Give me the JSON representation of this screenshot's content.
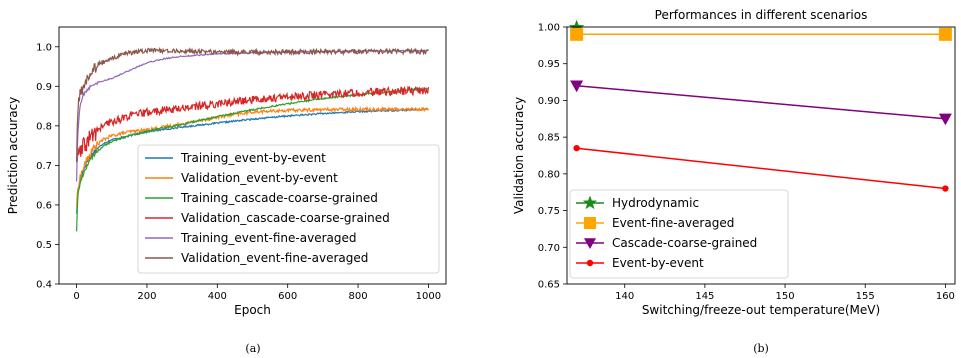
{
  "chart_data": [
    {
      "type": "line",
      "title": "",
      "xlabel": "Epoch",
      "ylabel": "Prediction accuracy",
      "xlim": [
        -50,
        1050
      ],
      "ylim": [
        0.4,
        1.05
      ],
      "xticks": [
        "0",
        "200",
        "400",
        "600",
        "800",
        "1000"
      ],
      "yticks": [
        "0.4",
        "0.5",
        "0.6",
        "0.7",
        "0.8",
        "0.9",
        "1.0"
      ],
      "grid": false,
      "legend_position": "lower-right",
      "caption": "(a)",
      "series": [
        {
          "name": "Training_event-by-event",
          "color": "#1f77b4",
          "noise": 0.002,
          "x": [
            0,
            5,
            10,
            20,
            30,
            50,
            75,
            100,
            150,
            200,
            300,
            400,
            500,
            600,
            700,
            800,
            900,
            1000
          ],
          "y": [
            0.58,
            0.64,
            0.665,
            0.69,
            0.71,
            0.735,
            0.755,
            0.765,
            0.775,
            0.785,
            0.797,
            0.807,
            0.817,
            0.825,
            0.831,
            0.836,
            0.839,
            0.842
          ]
        },
        {
          "name": "Validation_event-by-event",
          "color": "#ff7f0e",
          "noise": 0.004,
          "x": [
            0,
            5,
            10,
            20,
            30,
            50,
            75,
            100,
            150,
            200,
            300,
            400,
            500,
            600,
            700,
            800,
            900,
            1000
          ],
          "y": [
            0.6,
            0.65,
            0.67,
            0.695,
            0.715,
            0.745,
            0.765,
            0.775,
            0.785,
            0.79,
            0.805,
            0.822,
            0.835,
            0.839,
            0.841,
            0.842,
            0.842,
            0.842
          ]
        },
        {
          "name": "Training_cascade-coarse-grained",
          "color": "#2ca02c",
          "noise": 0.002,
          "x": [
            0,
            3,
            10,
            20,
            30,
            50,
            75,
            100,
            150,
            200,
            300,
            400,
            500,
            600,
            700,
            800,
            900,
            1000
          ],
          "y": [
            0.535,
            0.62,
            0.655,
            0.68,
            0.7,
            0.728,
            0.748,
            0.76,
            0.775,
            0.786,
            0.804,
            0.823,
            0.841,
            0.856,
            0.869,
            0.879,
            0.887,
            0.895
          ]
        },
        {
          "name": "Validation_cascade-coarse-grained",
          "color": "#d62728",
          "noise": 0.01,
          "x": [
            0,
            5,
            10,
            20,
            30,
            50,
            75,
            100,
            150,
            200,
            300,
            400,
            500,
            600,
            700,
            800,
            900,
            1000
          ],
          "y": [
            0.72,
            0.725,
            0.73,
            0.745,
            0.76,
            0.78,
            0.8,
            0.81,
            0.825,
            0.834,
            0.845,
            0.856,
            0.866,
            0.873,
            0.879,
            0.884,
            0.887,
            0.89
          ]
        },
        {
          "name": "Training_event-fine-averaged",
          "color": "#9467bd",
          "noise": 0.0015,
          "x": [
            0,
            3,
            10,
            20,
            40,
            60,
            100,
            150,
            200,
            250,
            300,
            400,
            500,
            600,
            800,
            1000
          ],
          "y": [
            0.66,
            0.78,
            0.85,
            0.88,
            0.9,
            0.91,
            0.92,
            0.94,
            0.96,
            0.97,
            0.976,
            0.982,
            0.985,
            0.987,
            0.989,
            0.99
          ]
        },
        {
          "name": "Validation_event-fine-averaged",
          "color": "#8c564b",
          "noise": 0.006,
          "x": [
            0,
            3,
            10,
            20,
            40,
            60,
            100,
            150,
            200,
            250,
            300,
            400,
            500,
            600,
            800,
            1000
          ],
          "y": [
            0.71,
            0.84,
            0.88,
            0.9,
            0.935,
            0.955,
            0.97,
            0.985,
            0.99,
            0.99,
            0.989,
            0.987,
            0.986,
            0.987,
            0.988,
            0.988
          ]
        }
      ]
    },
    {
      "type": "line",
      "title": "Performances in different scenarios",
      "xlabel": "Switching/freeze-out temperature(MeV)",
      "ylabel": "Validation accuracy",
      "xlim": [
        136.4,
        160.6
      ],
      "ylim": [
        0.65,
        1.0
      ],
      "xticks": [
        "140",
        "145",
        "150",
        "155",
        "160"
      ],
      "yticks": [
        "0.65",
        "0.70",
        "0.75",
        "0.80",
        "0.85",
        "0.90",
        "0.95",
        "1.00"
      ],
      "grid": false,
      "legend_position": "lower-left",
      "caption": "(b)",
      "series": [
        {
          "name": "Hydrodynamic",
          "color": "#1b8a1b",
          "marker": "star",
          "x": [
            137
          ],
          "y": [
            0.999
          ]
        },
        {
          "name": "Event-fine-averaged",
          "color": "#ffa500",
          "marker": "square",
          "x": [
            137,
            160
          ],
          "y": [
            0.99,
            0.99
          ]
        },
        {
          "name": "Cascade-coarse-grained",
          "color": "#800080",
          "marker": "triangle-down",
          "x": [
            137,
            160
          ],
          "y": [
            0.92,
            0.875
          ]
        },
        {
          "name": "Event-by-event",
          "color": "#ff0000",
          "marker": "circle",
          "x": [
            137,
            160
          ],
          "y": [
            0.835,
            0.78
          ]
        }
      ]
    }
  ]
}
